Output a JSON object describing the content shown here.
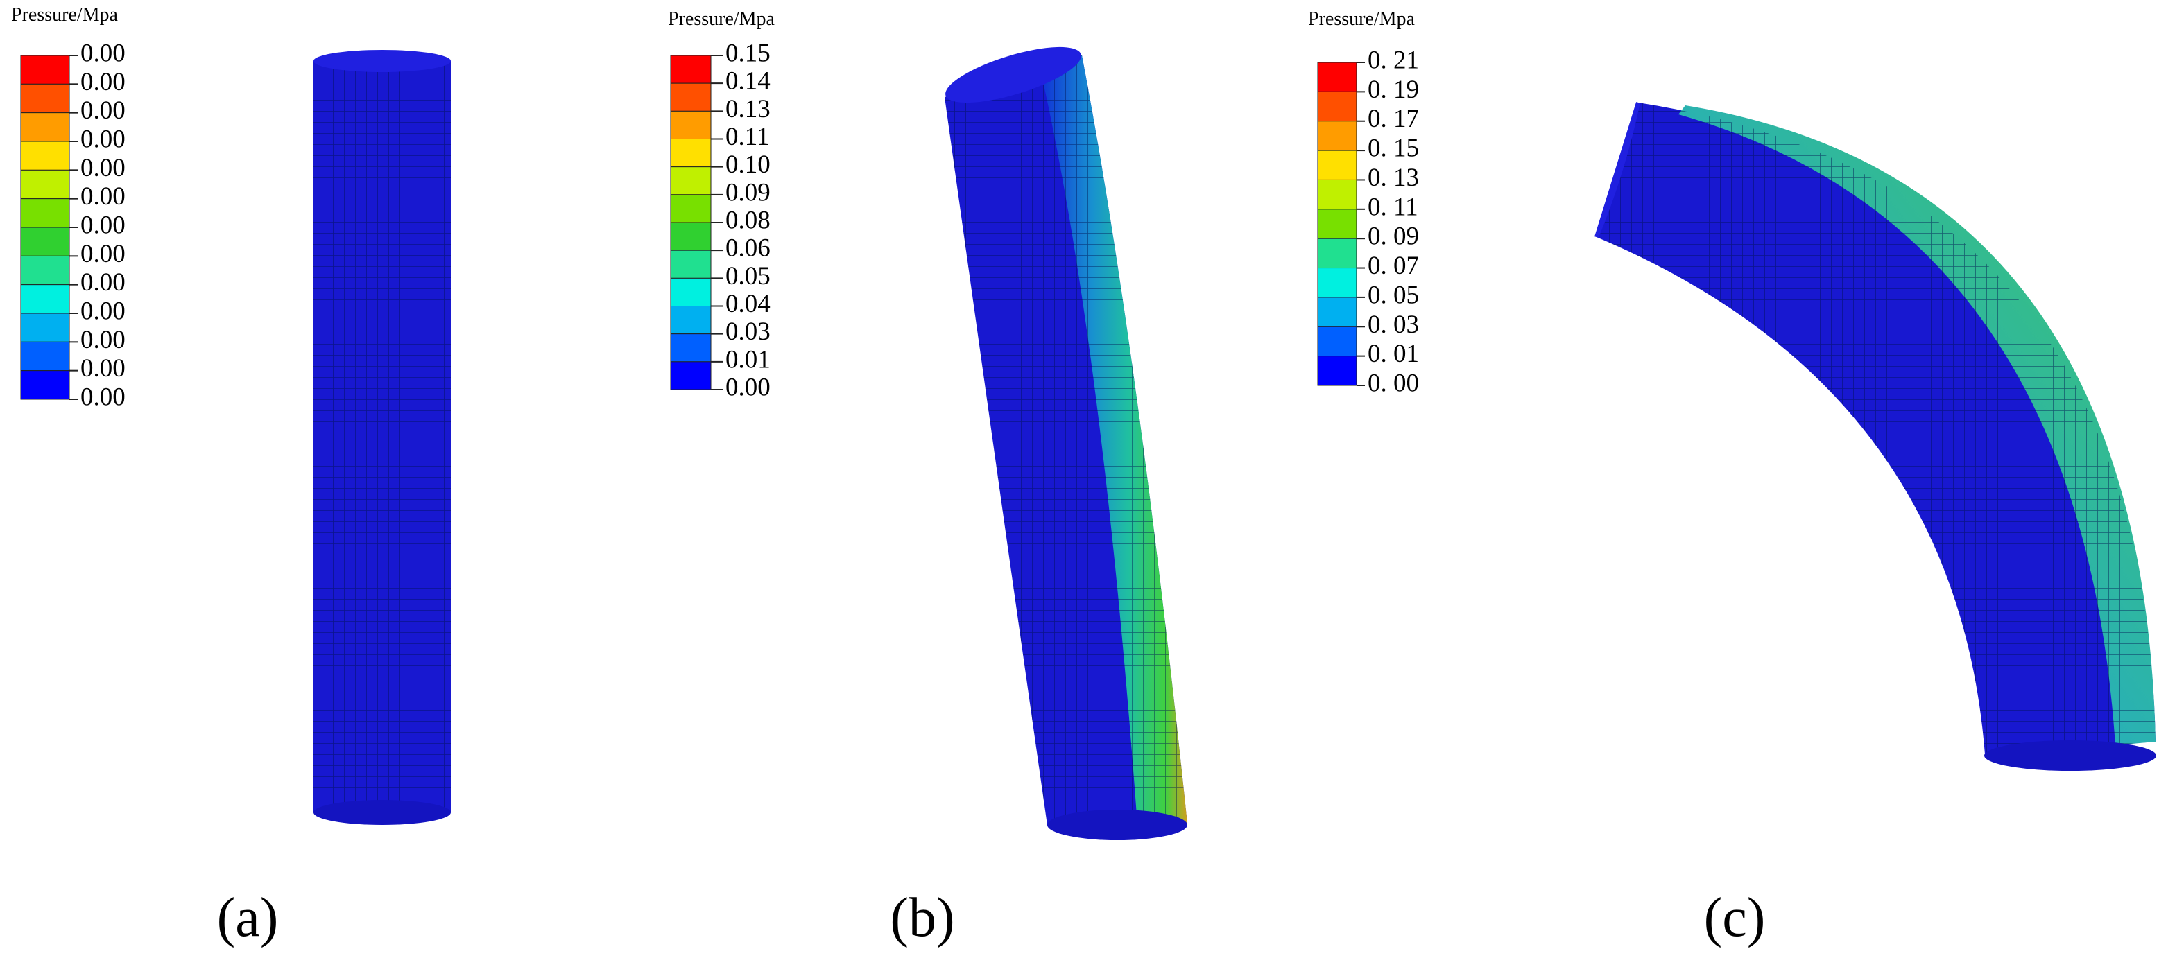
{
  "panels": [
    {
      "legend_title": "Pressure/Mpa",
      "legend_labels": [
        "0.00",
        "0.00",
        "0.00",
        "0.00",
        "0.00",
        "0.00",
        "0.00",
        "0.00",
        "0.00",
        "0.00",
        "0.00",
        "0.00",
        "0.00"
      ],
      "caption": "(a)"
    },
    {
      "legend_title": "Pressure/Mpa",
      "legend_labels": [
        "0.15",
        "0.14",
        "0.13",
        "0.11",
        "0.10",
        "0.09",
        "0.08",
        "0.06",
        "0.05",
        "0.04",
        "0.03",
        "0.01",
        "0.00"
      ],
      "caption": "(b)"
    },
    {
      "legend_title": "Pressure/Mpa",
      "legend_labels": [
        "0. 21",
        "0. 19",
        "0. 17",
        "0. 15",
        "0. 13",
        "0. 11",
        "0. 09",
        "0. 07",
        "0. 05",
        "0. 03",
        "0. 01",
        "0. 00"
      ],
      "caption": "(c)"
    }
  ]
}
